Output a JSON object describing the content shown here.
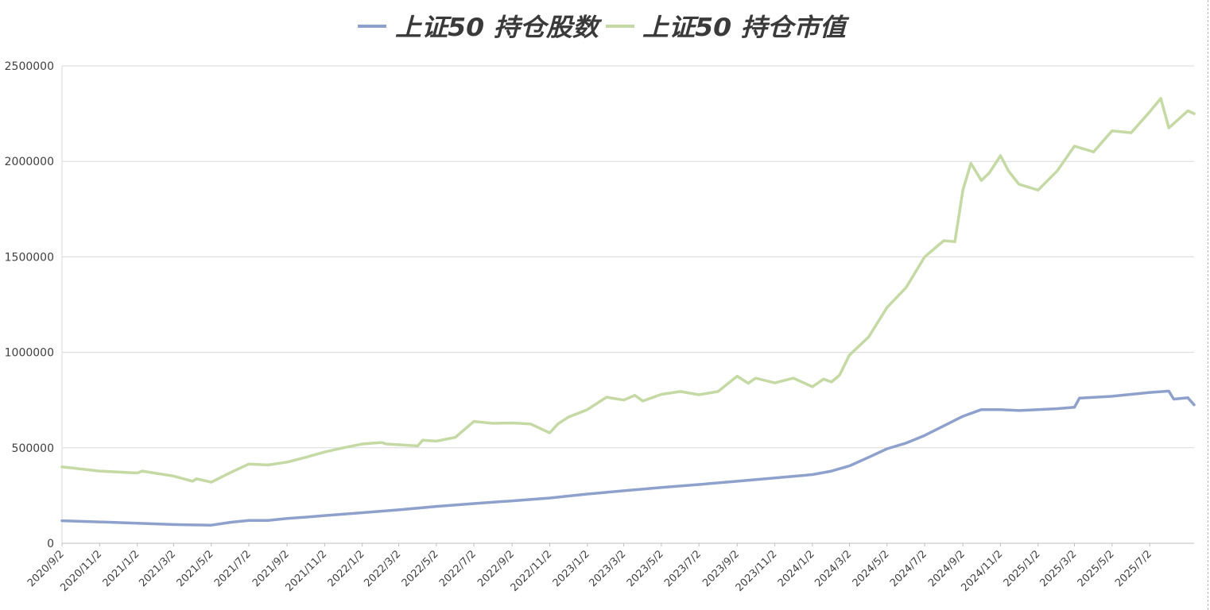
{
  "chart_data": {
    "type": "line",
    "title": "",
    "xlabel": "",
    "ylabel": "",
    "ylim": [
      0,
      2500000
    ],
    "yticks": [
      "0",
      "500000",
      "1000000",
      "1500000",
      "2000000",
      "2500000"
    ],
    "xticks": [
      "2020/9/2",
      "2020/11/2",
      "2021/1/2",
      "2021/3/2",
      "2021/5/2",
      "2021/7/2",
      "2021/9/2",
      "2021/11/2",
      "2022/1/2",
      "2022/3/2",
      "2022/5/2",
      "2022/7/2",
      "2022/9/2",
      "2022/11/2",
      "2023/1/2",
      "2023/3/2",
      "2023/5/2",
      "2023/7/2",
      "2023/9/2",
      "2023/11/2",
      "2024/1/2",
      "2024/3/2",
      "2024/5/2",
      "2024/7/2",
      "2024/9/2",
      "2024/11/2",
      "2025/1/2",
      "2025/3/2",
      "2025/5/2",
      "2025/7/2"
    ],
    "grid": true,
    "legend_position": "top",
    "series": [
      {
        "name": "上证50 持仓股数",
        "color": "#8ea1cc",
        "points": [
          [
            "2020/9/2",
            118000
          ],
          [
            "2020/11/2",
            112000
          ],
          [
            "2021/1/2",
            105000
          ],
          [
            "2021/3/2",
            98000
          ],
          [
            "2021/4/2",
            96000
          ],
          [
            "2021/5/2",
            95000
          ],
          [
            "2021/6/2",
            110000
          ],
          [
            "2021/7/2",
            120000
          ],
          [
            "2021/8/2",
            120000
          ],
          [
            "2021/9/2",
            130000
          ],
          [
            "2021/10/2",
            137000
          ],
          [
            "2021/11/2",
            145000
          ],
          [
            "2022/1/2",
            160000
          ],
          [
            "2022/3/2",
            175000
          ],
          [
            "2022/5/2",
            193000
          ],
          [
            "2022/7/2",
            208000
          ],
          [
            "2022/9/2",
            222000
          ],
          [
            "2022/11/2",
            237000
          ],
          [
            "2023/1/2",
            258000
          ],
          [
            "2023/3/2",
            275000
          ],
          [
            "2023/5/2",
            292000
          ],
          [
            "2023/7/2",
            308000
          ],
          [
            "2023/9/2",
            325000
          ],
          [
            "2023/11/2",
            342000
          ],
          [
            "2024/1/2",
            360000
          ],
          [
            "2024/2/2",
            378000
          ],
          [
            "2024/3/2",
            405000
          ],
          [
            "2024/4/2",
            450000
          ],
          [
            "2024/5/2",
            495000
          ],
          [
            "2024/6/2",
            525000
          ],
          [
            "2024/7/2",
            565000
          ],
          [
            "2024/8/2",
            615000
          ],
          [
            "2024/9/2",
            665000
          ],
          [
            "2024/10/2",
            700000
          ],
          [
            "2024/11/2",
            700000
          ],
          [
            "2024/12/2",
            695000
          ],
          [
            "2025/1/2",
            700000
          ],
          [
            "2025/2/2",
            705000
          ],
          [
            "2025/3/2",
            712000
          ],
          [
            "2025/3/10",
            760000
          ],
          [
            "2025/5/2",
            770000
          ],
          [
            "2025/7/2",
            790000
          ],
          [
            "2025/8/2",
            797000
          ],
          [
            "2025/8/10",
            755000
          ],
          [
            "2025/9/2",
            762000
          ],
          [
            "2025/9/12",
            725000
          ]
        ]
      },
      {
        "name": "上证50 持仓市值",
        "color": "#c5d9a4",
        "points": [
          [
            "2020/9/2",
            400000
          ],
          [
            "2020/11/2",
            378000
          ],
          [
            "2021/1/2",
            368000
          ],
          [
            "2021/1/10",
            378000
          ],
          [
            "2021/3/2",
            352000
          ],
          [
            "2021/4/2",
            325000
          ],
          [
            "2021/4/8",
            338000
          ],
          [
            "2021/5/2",
            320000
          ],
          [
            "2021/6/2",
            370000
          ],
          [
            "2021/7/2",
            415000
          ],
          [
            "2021/8/2",
            410000
          ],
          [
            "2021/9/2",
            425000
          ],
          [
            "2021/10/2",
            450000
          ],
          [
            "2021/11/2",
            478000
          ],
          [
            "2021/12/2",
            500000
          ],
          [
            "2022/1/2",
            520000
          ],
          [
            "2022/2/2",
            528000
          ],
          [
            "2022/2/10",
            520000
          ],
          [
            "2022/4/2",
            510000
          ],
          [
            "2022/4/10",
            540000
          ],
          [
            "2022/5/2",
            535000
          ],
          [
            "2022/6/2",
            555000
          ],
          [
            "2022/7/2",
            638000
          ],
          [
            "2022/8/2",
            628000
          ],
          [
            "2022/9/2",
            630000
          ],
          [
            "2022/10/2",
            625000
          ],
          [
            "2022/11/2",
            578000
          ],
          [
            "2022/11/15",
            625000
          ],
          [
            "2022/12/2",
            660000
          ],
          [
            "2023/1/2",
            700000
          ],
          [
            "2023/2/2",
            765000
          ],
          [
            "2023/3/2",
            750000
          ],
          [
            "2023/3/20",
            775000
          ],
          [
            "2023/4/2",
            745000
          ],
          [
            "2023/5/2",
            780000
          ],
          [
            "2023/6/2",
            795000
          ],
          [
            "2023/7/2",
            778000
          ],
          [
            "2023/8/2",
            795000
          ],
          [
            "2023/9/2",
            875000
          ],
          [
            "2023/9/20",
            838000
          ],
          [
            "2023/10/2",
            865000
          ],
          [
            "2023/11/2",
            840000
          ],
          [
            "2023/12/2",
            865000
          ],
          [
            "2024/1/2",
            820000
          ],
          [
            "2024/1/20",
            860000
          ],
          [
            "2024/2/2",
            845000
          ],
          [
            "2024/2/15",
            880000
          ],
          [
            "2024/3/2",
            985000
          ],
          [
            "2024/4/2",
            1080000
          ],
          [
            "2024/5/2",
            1235000
          ],
          [
            "2024/6/2",
            1340000
          ],
          [
            "2024/7/2",
            1500000
          ],
          [
            "2024/8/2",
            1585000
          ],
          [
            "2024/8/20",
            1580000
          ],
          [
            "2024/9/2",
            1850000
          ],
          [
            "2024/9/15",
            1990000
          ],
          [
            "2024/10/2",
            1900000
          ],
          [
            "2024/10/15",
            1940000
          ],
          [
            "2024/11/2",
            2030000
          ],
          [
            "2024/11/15",
            1950000
          ],
          [
            "2024/12/2",
            1880000
          ],
          [
            "2025/1/2",
            1850000
          ],
          [
            "2025/2/2",
            1950000
          ],
          [
            "2025/3/2",
            2080000
          ],
          [
            "2025/4/2",
            2050000
          ],
          [
            "2025/5/2",
            2160000
          ],
          [
            "2025/6/2",
            2150000
          ],
          [
            "2025/7/2",
            2260000
          ],
          [
            "2025/7/20",
            2330000
          ],
          [
            "2025/8/2",
            2175000
          ],
          [
            "2025/9/2",
            2265000
          ],
          [
            "2025/9/12",
            2250000
          ]
        ]
      }
    ]
  }
}
